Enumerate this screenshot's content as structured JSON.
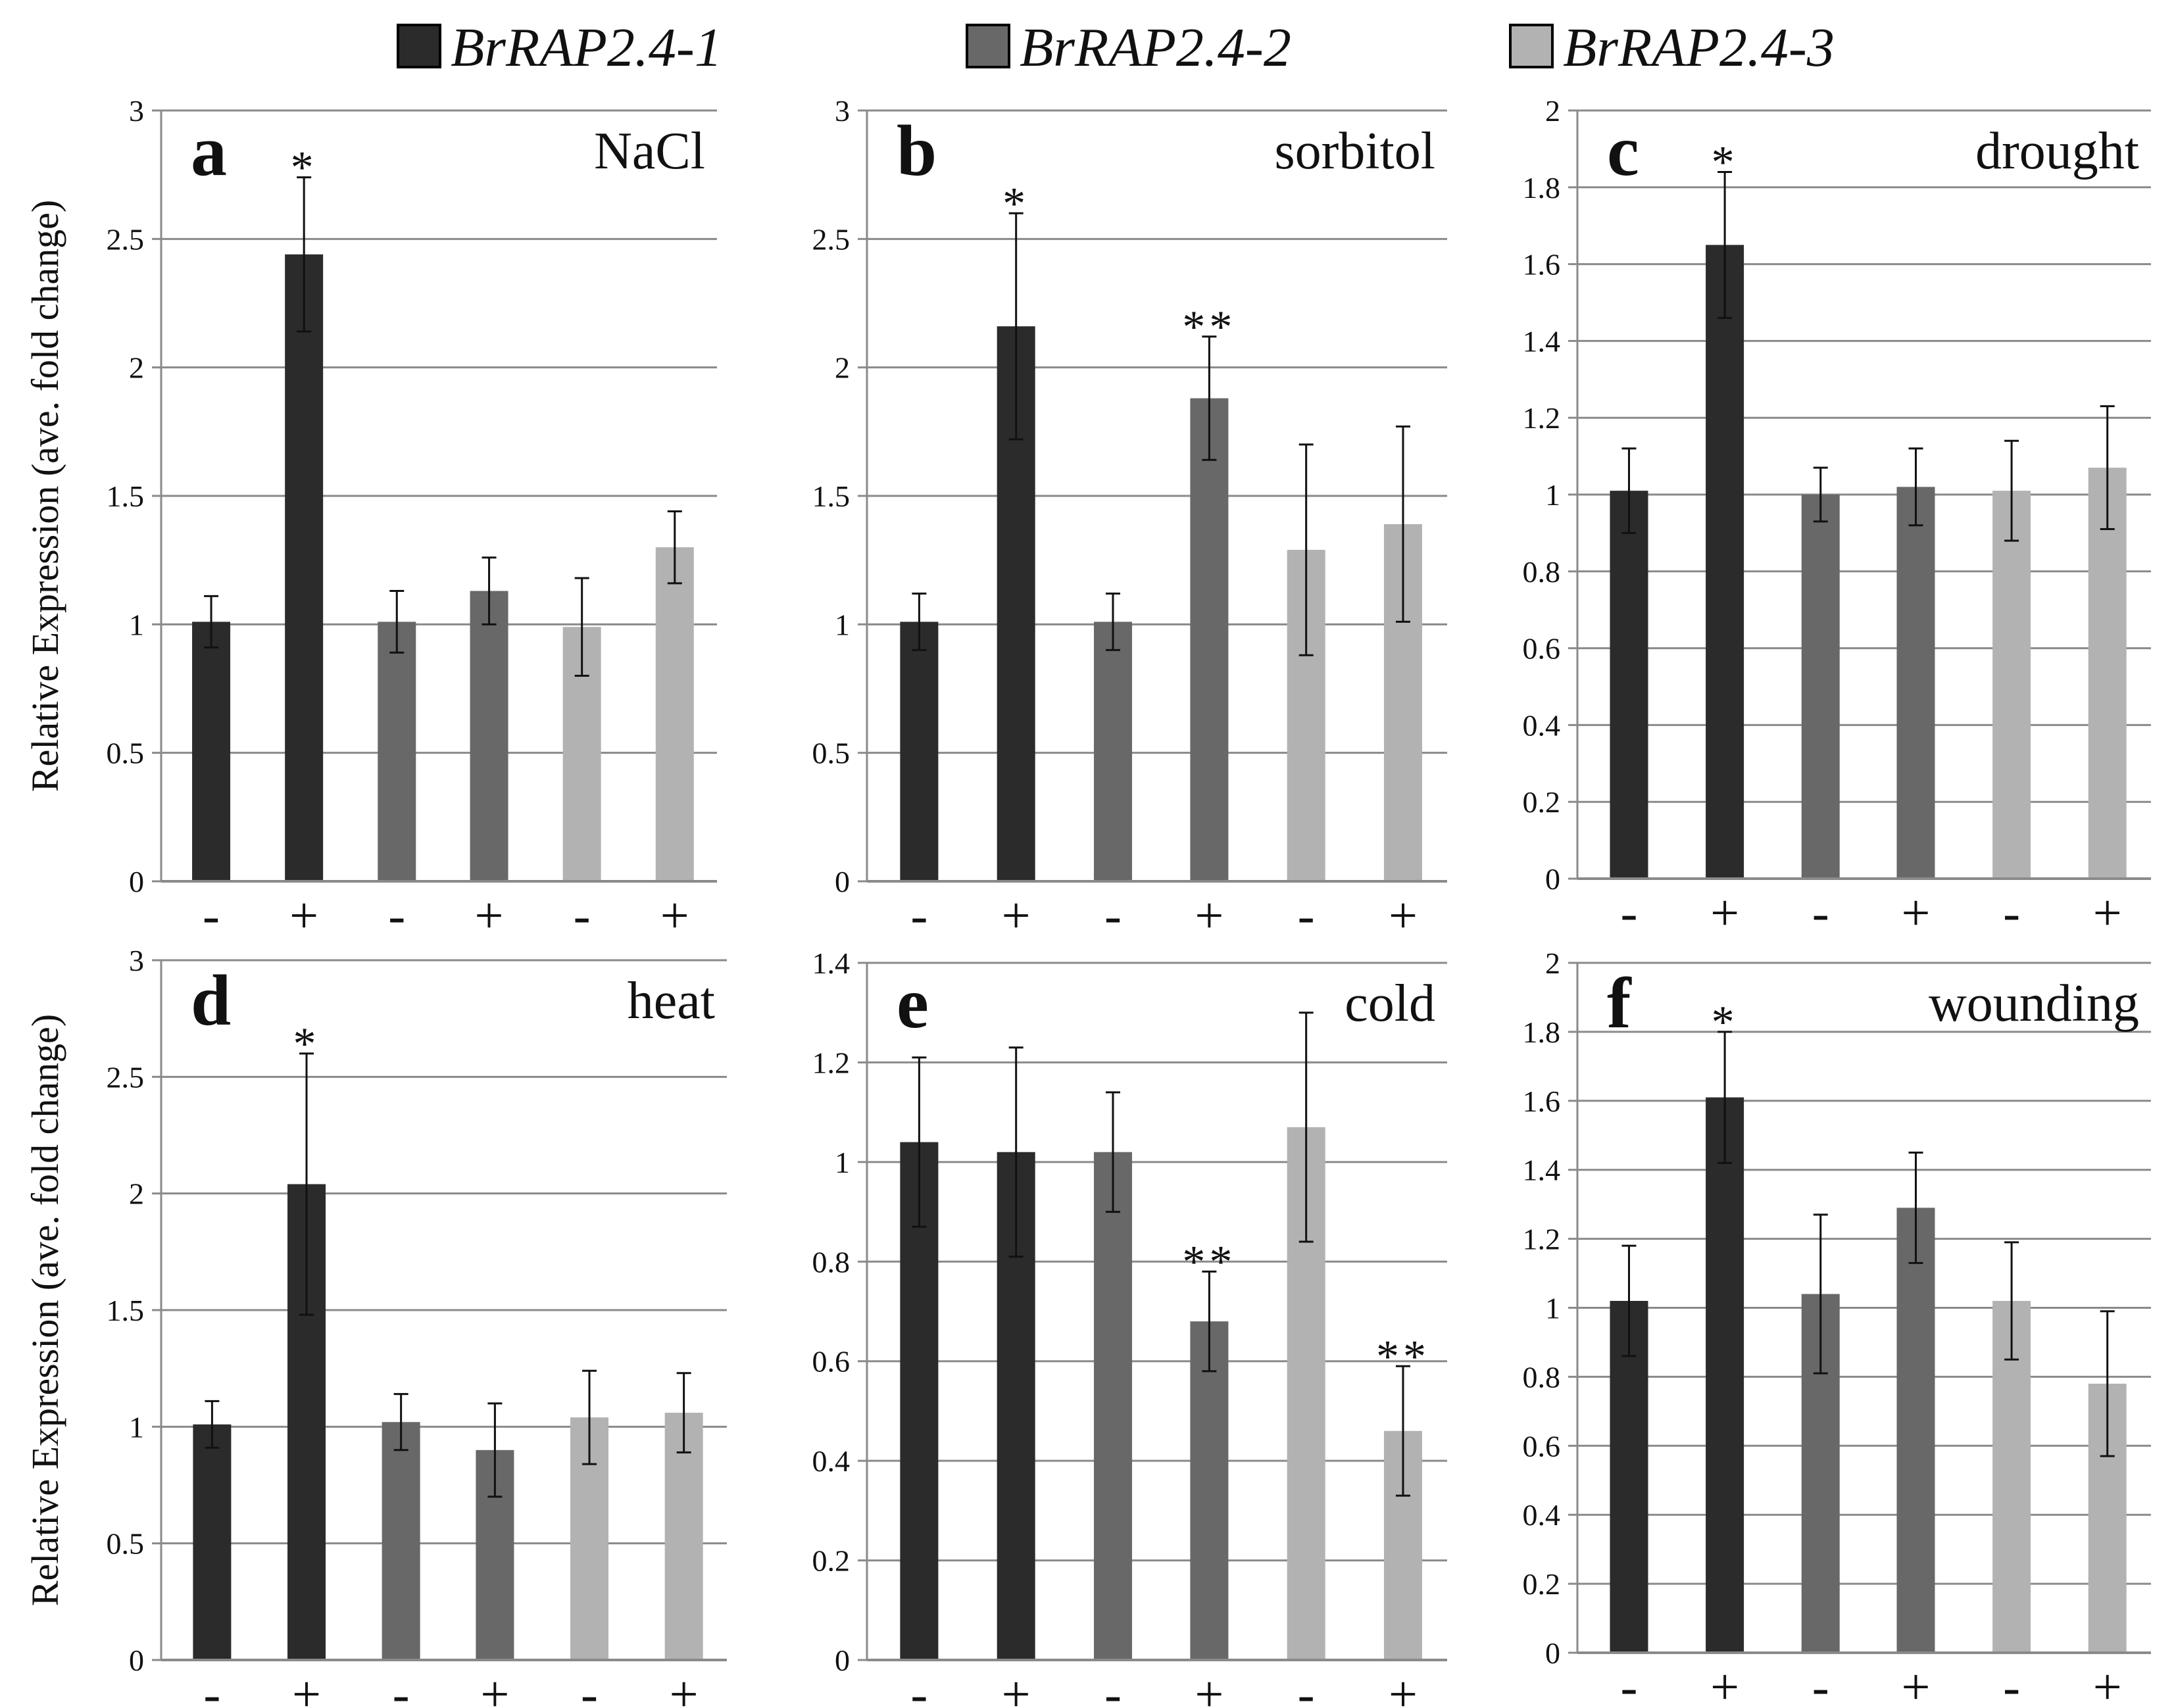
{
  "figure": {
    "ylabel": "Relative Expression (ave. fold change)",
    "colors": {
      "BrRAP2.4-1": "#2b2b2b",
      "BrRAP2.4-2": "#686868",
      "BrRAP2.4-3": "#b2b2b2"
    }
  },
  "legend": [
    {
      "label": "BrRAP2.4-1",
      "color": "#2b2b2b"
    },
    {
      "label": "BrRAP2.4-2",
      "color": "#686868"
    },
    {
      "label": "BrRAP2.4-3",
      "color": "#b2b2b2"
    }
  ],
  "chart_data": [
    {
      "type": "bar",
      "panel": "a",
      "title": "NaCl",
      "ylabel": "Relative Expression (ave. fold change)",
      "categories": [
        "-",
        "+",
        "-",
        "+",
        "-",
        "+"
      ],
      "series_of_bar": [
        "BrRAP2.4-1",
        "BrRAP2.4-1",
        "BrRAP2.4-2",
        "BrRAP2.4-2",
        "BrRAP2.4-3",
        "BrRAP2.4-3"
      ],
      "values": [
        1.01,
        2.44,
        1.01,
        1.13,
        0.99,
        1.3
      ],
      "errors": [
        0.1,
        0.3,
        0.12,
        0.13,
        0.19,
        0.14
      ],
      "significance": [
        "",
        "*",
        "",
        "",
        "",
        ""
      ],
      "ylim": [
        0,
        3
      ],
      "yticks": [
        "0",
        "0.5",
        "1",
        "1.5",
        "2",
        "2.5",
        "3"
      ]
    },
    {
      "type": "bar",
      "panel": "b",
      "title": "sorbitol",
      "ylabel": "",
      "categories": [
        "-",
        "+",
        "-",
        "+",
        "-",
        "+"
      ],
      "series_of_bar": [
        "BrRAP2.4-1",
        "BrRAP2.4-1",
        "BrRAP2.4-2",
        "BrRAP2.4-2",
        "BrRAP2.4-3",
        "BrRAP2.4-3"
      ],
      "values": [
        1.01,
        2.16,
        1.01,
        1.88,
        1.29,
        1.39
      ],
      "errors": [
        0.11,
        0.44,
        0.11,
        0.24,
        0.41,
        0.38
      ],
      "significance": [
        "",
        "*",
        "",
        "**",
        "",
        ""
      ],
      "ylim": [
        0,
        3
      ],
      "yticks": [
        "0",
        "0.5",
        "1",
        "1.5",
        "2",
        "2.5",
        "3"
      ]
    },
    {
      "type": "bar",
      "panel": "c",
      "title": "drought",
      "ylabel": "",
      "categories": [
        "-",
        "+",
        "-",
        "+",
        "-",
        "+"
      ],
      "series_of_bar": [
        "BrRAP2.4-1",
        "BrRAP2.4-1",
        "BrRAP2.4-2",
        "BrRAP2.4-2",
        "BrRAP2.4-3",
        "BrRAP2.4-3"
      ],
      "values": [
        1.01,
        1.65,
        1.0,
        1.02,
        1.01,
        1.07
      ],
      "errors": [
        0.11,
        0.19,
        0.07,
        0.1,
        0.13,
        0.16
      ],
      "significance": [
        "",
        "*",
        "",
        "",
        "",
        ""
      ],
      "ylim": [
        0,
        2
      ],
      "yticks": [
        "0",
        "0.2",
        "0.4",
        "0.6",
        "0.8",
        "1",
        "1.2",
        "1.4",
        "1.6",
        "1.8",
        "2"
      ]
    },
    {
      "type": "bar",
      "panel": "d",
      "title": "heat",
      "ylabel": "Relative Expression (ave. fold change)",
      "categories": [
        "-",
        "+",
        "-",
        "+",
        "-",
        "+"
      ],
      "series_of_bar": [
        "BrRAP2.4-1",
        "BrRAP2.4-1",
        "BrRAP2.4-2",
        "BrRAP2.4-2",
        "BrRAP2.4-3",
        "BrRAP2.4-3"
      ],
      "values": [
        1.01,
        2.04,
        1.02,
        0.9,
        1.04,
        1.06
      ],
      "errors": [
        0.1,
        0.56,
        0.12,
        0.2,
        0.2,
        0.17
      ],
      "significance": [
        "",
        "*",
        "",
        "",
        "",
        ""
      ],
      "ylim": [
        0,
        3
      ],
      "yticks": [
        "0",
        "0.5",
        "1",
        "1.5",
        "2",
        "2.5",
        "3"
      ]
    },
    {
      "type": "bar",
      "panel": "e",
      "title": "cold",
      "ylabel": "",
      "categories": [
        "-",
        "+",
        "-",
        "+",
        "-",
        "+"
      ],
      "series_of_bar": [
        "BrRAP2.4-1",
        "BrRAP2.4-1",
        "BrRAP2.4-2",
        "BrRAP2.4-2",
        "BrRAP2.4-3",
        "BrRAP2.4-3"
      ],
      "values": [
        1.04,
        1.02,
        1.02,
        0.68,
        1.07,
        0.46
      ],
      "errors": [
        0.17,
        0.21,
        0.12,
        0.1,
        0.23,
        0.13
      ],
      "significance": [
        "",
        "",
        "",
        "**",
        "",
        "**"
      ],
      "ylim": [
        0,
        1.4
      ],
      "yticks": [
        "0",
        "0.2",
        "0.4",
        "0.6",
        "0.8",
        "1",
        "1.2",
        "1.4"
      ]
    },
    {
      "type": "bar",
      "panel": "f",
      "title": "wounding",
      "ylabel": "",
      "categories": [
        "-",
        "+",
        "-",
        "+",
        "-",
        "+"
      ],
      "series_of_bar": [
        "BrRAP2.4-1",
        "BrRAP2.4-1",
        "BrRAP2.4-2",
        "BrRAP2.4-2",
        "BrRAP2.4-3",
        "BrRAP2.4-3"
      ],
      "values": [
        1.02,
        1.61,
        1.04,
        1.29,
        1.02,
        0.78
      ],
      "errors": [
        0.16,
        0.19,
        0.23,
        0.16,
        0.17,
        0.21
      ],
      "significance": [
        "",
        "*",
        "",
        "",
        "",
        ""
      ],
      "ylim": [
        0,
        2
      ],
      "yticks": [
        "0",
        "0.2",
        "0.4",
        "0.6",
        "0.8",
        "1",
        "1.2",
        "1.4",
        "1.6",
        "1.8",
        "2"
      ]
    }
  ]
}
